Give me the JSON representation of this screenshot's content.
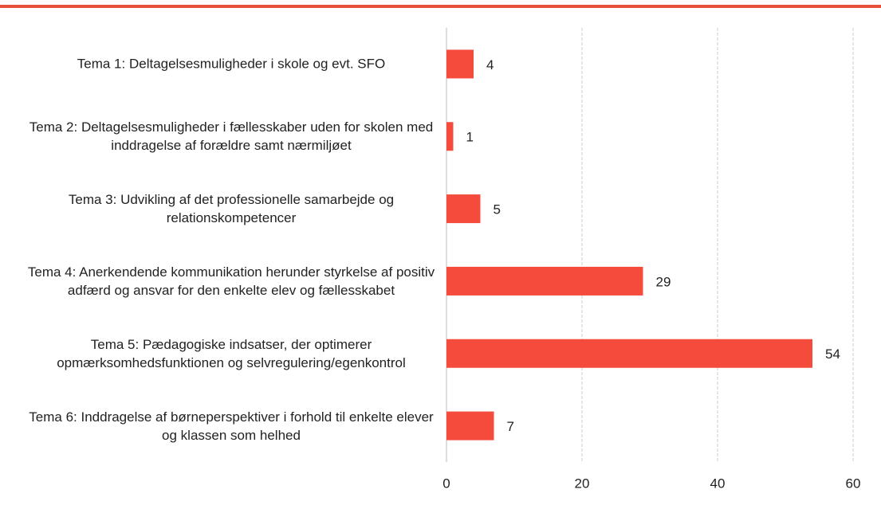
{
  "chart_data": {
    "type": "barh",
    "categories": [
      "Tema 1: Deltagelsesmuligheder i skole og evt. SFO",
      "Tema 2: Deltagelsesmuligheder i fællesskaber uden for skolen med inddragelse af forældre samt nærmiljøet",
      "Tema 3: Udvikling af det professionelle samarbejde og relationskompetencer",
      "Tema 4: Anerkendende kommunikation herunder styrkelse af positiv adfærd og ansvar for den enkelte elev og fællesskabet",
      "Tema 5: Pædagogiske indsatser, der optimerer opmærksomhedsfunktionen og selvregulering/egenkontrol",
      "Tema 6: Inddragelse af børneperspektiver i forhold til enkelte elever og klassen som helhed"
    ],
    "values": [
      4,
      1,
      5,
      29,
      54,
      7
    ],
    "color": "#f44b3c",
    "xlim": [
      0,
      60
    ],
    "xticks": [
      0,
      20,
      40,
      60
    ],
    "grid": true
  }
}
